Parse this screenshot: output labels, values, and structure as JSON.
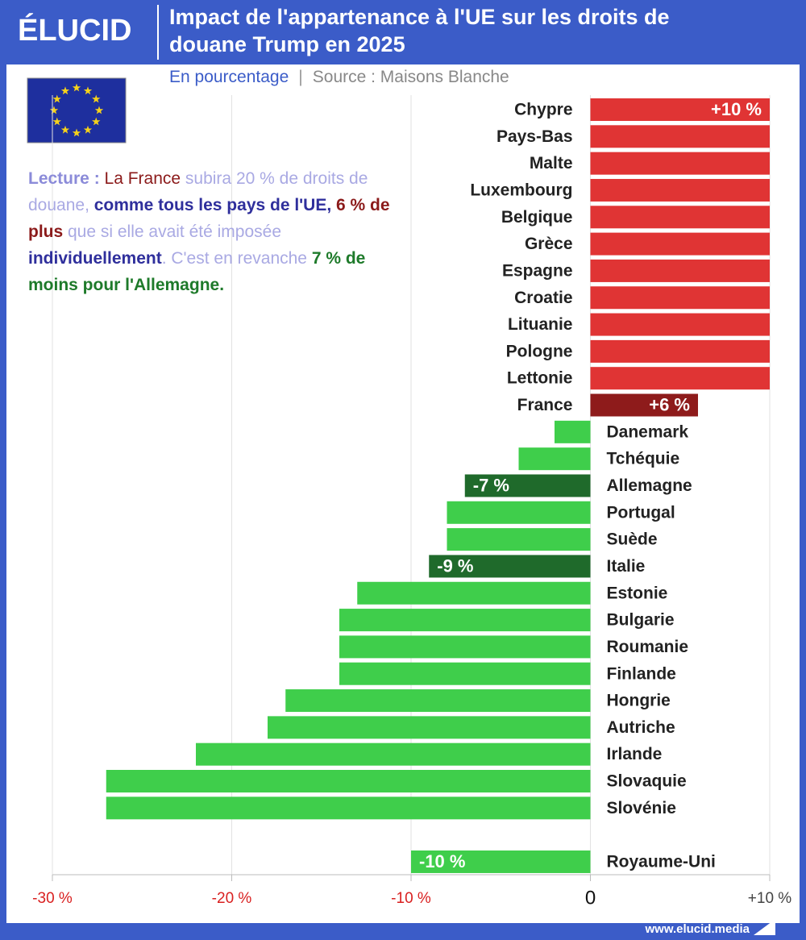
{
  "logo": "ÉLUCID",
  "footer": "www.elucid.media",
  "chart_data": {
    "type": "bar",
    "orientation": "horizontal",
    "title": "Impact de l'appartenance à l'UE sur les droits de douane Trump en 2025",
    "subtitle": "En pourcentage",
    "separator": "|",
    "source": "Source : Maisons Blanche",
    "annotation": [
      {
        "text": "Lecture :",
        "color": "#8b8bd9",
        "bold": true
      },
      {
        "text": " La France",
        "color": "#8b1a1a",
        "bold": false
      },
      {
        "text": " subira 20 % de droits de douane,",
        "color": "#a9a9e3",
        "bold": false
      },
      {
        "text": " comme tous les pays de l'UE,",
        "color": "#2f2f9c",
        "bold": true
      },
      {
        "text": " 6 % de plus",
        "color": "#8b1a1a",
        "bold": true
      },
      {
        "text": " que si elle avait été imposée",
        "color": "#a9a9e3",
        "bold": false
      },
      {
        "text": " individuellement",
        "color": "#2f2f9c",
        "bold": true
      },
      {
        "text": ". C'est en revanche",
        "color": "#a9a9e3",
        "bold": false
      },
      {
        "text": " 7 %",
        "color": "#1e7a2a",
        "bold": true
      },
      {
        "text": " de moins",
        "color": "#1e7a2a",
        "bold": true
      },
      {
        "text": " pour l'Allemagne.",
        "color": "#1e7a2a",
        "bold": true
      }
    ],
    "categories": [
      "Chypre",
      "Pays-Bas",
      "Malte",
      "Luxembourg",
      "Belgique",
      "Grèce",
      "Espagne",
      "Croatie",
      "Lituanie",
      "Pologne",
      "Lettonie",
      "France",
      "Danemark",
      "Tchéquie",
      "Allemagne",
      "Portugal",
      "Suède",
      "Italie",
      "Estonie",
      "Bulgarie",
      "Roumanie",
      "Finlande",
      "Hongrie",
      "Autriche",
      "Irlande",
      "Slovaquie",
      "Slovénie",
      null,
      "Royaume-Uni"
    ],
    "values": [
      10,
      10,
      10,
      10,
      10,
      10,
      10,
      10,
      10,
      10,
      10,
      6,
      -2,
      -4,
      -7,
      -8,
      -8,
      -9,
      -13,
      -14,
      -14,
      -14,
      -17,
      -18,
      -22,
      -27,
      -27,
      null,
      -10
    ],
    "value_labels": [
      "+10 %",
      null,
      null,
      null,
      null,
      null,
      null,
      null,
      null,
      null,
      null,
      "+6 %",
      null,
      null,
      "-7 %",
      null,
      null,
      "-9 %",
      null,
      null,
      null,
      null,
      null,
      null,
      null,
      null,
      null,
      null,
      "-10 %"
    ],
    "colors": [
      "#e03434",
      "#e03434",
      "#e03434",
      "#e03434",
      "#e03434",
      "#e03434",
      "#e03434",
      "#e03434",
      "#e03434",
      "#e03434",
      "#e03434",
      "#8e1b1b",
      "#3fce4b",
      "#3fce4b",
      "#1f6a2b",
      "#3fce4b",
      "#3fce4b",
      "#1f6a2b",
      "#3fce4b",
      "#3fce4b",
      "#3fce4b",
      "#3fce4b",
      "#3fce4b",
      "#3fce4b",
      "#3fce4b",
      "#3fce4b",
      "#3fce4b",
      null,
      "#3fce4b"
    ],
    "xlim": [
      -30,
      10
    ],
    "xticks": [
      {
        "value": -30,
        "label": "-30 %"
      },
      {
        "value": -20,
        "label": "-20 %"
      },
      {
        "value": -10,
        "label": "-10 %"
      },
      0,
      {
        "value": 10,
        "label": "+10 %"
      }
    ],
    "grid": true
  }
}
